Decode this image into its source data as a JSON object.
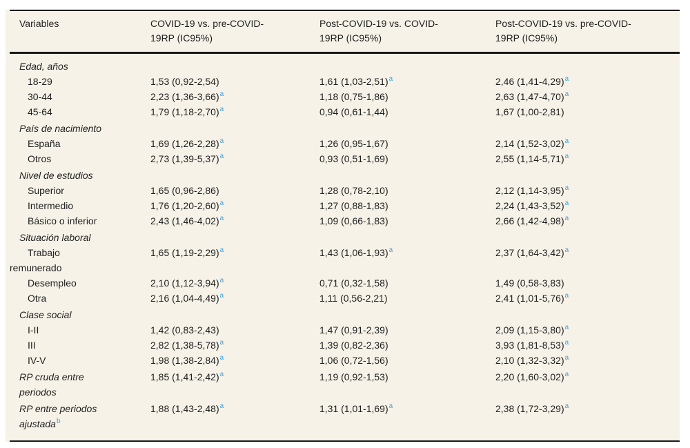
{
  "colors": {
    "paper_background": "#f6f2e8",
    "rule": "#181818",
    "text": "#1f1f1f",
    "footnote_marker": "#3f9ed8"
  },
  "table": {
    "columns": [
      "Variables",
      "COVID-19 vs. pre-COVID-\n19RP (IC95%)",
      "Post-COVID-19 vs. COVID-\n19RP (IC95%)",
      "Post-COVID-19 vs. pre-COVID-\n19RP (IC95%)"
    ],
    "rows": [
      {
        "label": "Edad, años",
        "label_sup": "",
        "style": "section",
        "values": [
          {
            "text": "",
            "sup": ""
          },
          {
            "text": "",
            "sup": ""
          },
          {
            "text": "",
            "sup": ""
          }
        ]
      },
      {
        "label": "18-29",
        "label_sup": "",
        "style": "item",
        "values": [
          {
            "text": "1,53 (0,92-2,54)",
            "sup": ""
          },
          {
            "text": "1,61 (1,03-2,51)",
            "sup": "a"
          },
          {
            "text": "2,46 (1,41-4,29)",
            "sup": "a"
          }
        ]
      },
      {
        "label": "30-44",
        "label_sup": "",
        "style": "item",
        "values": [
          {
            "text": "2,23 (1,36-3,66)",
            "sup": "a"
          },
          {
            "text": "1,18 (0,75-1,86)",
            "sup": ""
          },
          {
            "text": "2,63 (1,47-4,70)",
            "sup": "a"
          }
        ]
      },
      {
        "label": "45-64",
        "label_sup": "",
        "style": "item",
        "values": [
          {
            "text": "1,79 (1,18-2,70)",
            "sup": "a"
          },
          {
            "text": "0,94 (0,61-1,44)",
            "sup": ""
          },
          {
            "text": "1,67 (1,00-2,81)",
            "sup": ""
          }
        ]
      },
      {
        "label": "País de nacimiento",
        "label_sup": "",
        "style": "section",
        "values": [
          {
            "text": "",
            "sup": ""
          },
          {
            "text": "",
            "sup": ""
          },
          {
            "text": "",
            "sup": ""
          }
        ]
      },
      {
        "label": "España",
        "label_sup": "",
        "style": "item",
        "values": [
          {
            "text": "1,69 (1,26-2,28)",
            "sup": "a"
          },
          {
            "text": "1,26 (0,95-1,67)",
            "sup": ""
          },
          {
            "text": "2,14 (1,52-3,02)",
            "sup": "a"
          }
        ]
      },
      {
        "label": "Otros",
        "label_sup": "",
        "style": "item",
        "values": [
          {
            "text": "2,73 (1,39-5,37)",
            "sup": "a"
          },
          {
            "text": "0,93 (0,51-1,69)",
            "sup": ""
          },
          {
            "text": "2,55 (1,14-5,71)",
            "sup": "a"
          }
        ]
      },
      {
        "label": "Nivel de estudios",
        "label_sup": "",
        "style": "section",
        "values": [
          {
            "text": "",
            "sup": ""
          },
          {
            "text": "",
            "sup": ""
          },
          {
            "text": "",
            "sup": ""
          }
        ]
      },
      {
        "label": "Superior",
        "label_sup": "",
        "style": "item",
        "values": [
          {
            "text": "1,65 (0,96-2,86)",
            "sup": ""
          },
          {
            "text": "1,28 (0,78-2,10)",
            "sup": ""
          },
          {
            "text": "2,12 (1,14-3,95)",
            "sup": "a"
          }
        ]
      },
      {
        "label": "Intermedio",
        "label_sup": "",
        "style": "item",
        "values": [
          {
            "text": "1,76 (1,20-2,60)",
            "sup": "a"
          },
          {
            "text": "1,27 (0,88-1,83)",
            "sup": ""
          },
          {
            "text": "2,24 (1,43-3,52)",
            "sup": "a"
          }
        ]
      },
      {
        "label": "Básico o inferior",
        "label_sup": "",
        "style": "item",
        "values": [
          {
            "text": "2,43 (1,46-4,02)",
            "sup": "a"
          },
          {
            "text": "1,09 (0,66-1,83)",
            "sup": ""
          },
          {
            "text": "2,66 (1,42-4,98)",
            "sup": "a"
          }
        ]
      },
      {
        "label": "Situación laboral",
        "label_sup": "",
        "style": "section",
        "values": [
          {
            "text": "",
            "sup": ""
          },
          {
            "text": "",
            "sup": ""
          },
          {
            "text": "",
            "sup": ""
          }
        ]
      },
      {
        "label": "Trabajo\nremunerado",
        "label_sup": "",
        "style": "item",
        "values": [
          {
            "text": "1,65 (1,19-2,29)",
            "sup": "a"
          },
          {
            "text": "1,43 (1,06-1,93)",
            "sup": "a"
          },
          {
            "text": "2,37 (1,64-3,42)",
            "sup": "a"
          }
        ]
      },
      {
        "label": "Desempleo",
        "label_sup": "",
        "style": "item",
        "values": [
          {
            "text": "2,10 (1,12-3,94)",
            "sup": "a"
          },
          {
            "text": "0,71 (0,32-1,58)",
            "sup": ""
          },
          {
            "text": "1,49 (0,58-3,83)",
            "sup": ""
          }
        ]
      },
      {
        "label": "Otra",
        "label_sup": "",
        "style": "item",
        "values": [
          {
            "text": "2,16 (1,04-4,49)",
            "sup": "a"
          },
          {
            "text": "1,11 (0,56-2,21)",
            "sup": ""
          },
          {
            "text": "2,41 (1,01-5,76)",
            "sup": "a"
          }
        ]
      },
      {
        "label": "Clase social",
        "label_sup": "",
        "style": "section",
        "values": [
          {
            "text": "",
            "sup": ""
          },
          {
            "text": "",
            "sup": ""
          },
          {
            "text": "",
            "sup": ""
          }
        ]
      },
      {
        "label": "I-II",
        "label_sup": "",
        "style": "item",
        "values": [
          {
            "text": "1,42 (0,83-2,43)",
            "sup": ""
          },
          {
            "text": "1,47 (0,91-2,39)",
            "sup": ""
          },
          {
            "text": "2,09 (1,15-3,80)",
            "sup": "a"
          }
        ]
      },
      {
        "label": "III",
        "label_sup": "",
        "style": "item",
        "values": [
          {
            "text": "2,82 (1,38-5,78)",
            "sup": "a"
          },
          {
            "text": "1,39 (0,82-2,36)",
            "sup": ""
          },
          {
            "text": "3,93 (1,81-8,53)",
            "sup": "a"
          }
        ]
      },
      {
        "label": "IV-V",
        "label_sup": "",
        "style": "item",
        "values": [
          {
            "text": "1,98 (1,38-2,84)",
            "sup": "a"
          },
          {
            "text": "1,06 (0,72-1,56)",
            "sup": ""
          },
          {
            "text": "2,10 (1,32-3,32)",
            "sup": "a"
          }
        ]
      },
      {
        "label": "RP cruda entre\nperiodos",
        "label_sup": "",
        "style": "summary",
        "values": [
          {
            "text": "1,85 (1,41-2,42)",
            "sup": "a"
          },
          {
            "text": "1,19 (0,92-1,53)",
            "sup": ""
          },
          {
            "text": "2,20 (1,60-3,02)",
            "sup": "a"
          }
        ]
      },
      {
        "label": "RP entre periodos\najustada",
        "label_sup": "b",
        "style": "summary",
        "values": [
          {
            "text": "1,88 (1,43-2,48)",
            "sup": "a"
          },
          {
            "text": "1,31 (1,01-1,69)",
            "sup": "a"
          },
          {
            "text": "2,38 (1,72-3,29)",
            "sup": "a"
          }
        ]
      }
    ]
  }
}
